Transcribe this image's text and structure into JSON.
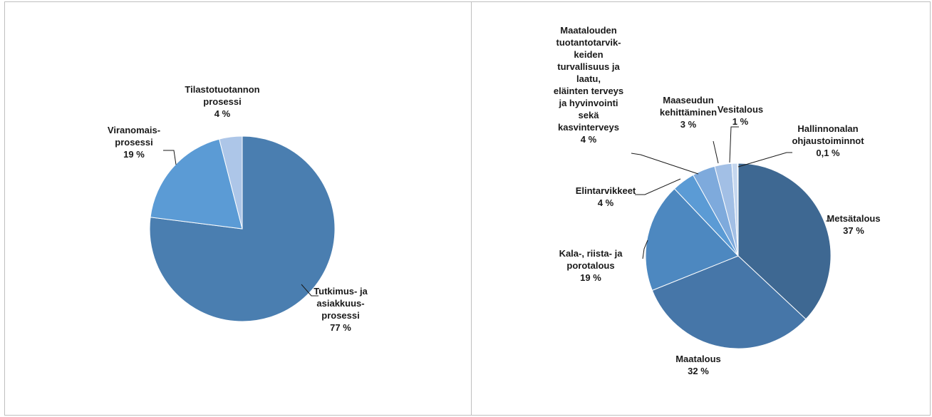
{
  "chart_data": [
    {
      "type": "pie",
      "title": "",
      "slices": [
        {
          "label_lines": [
            "Tutkimus- ja",
            "asiakkuus-",
            "prosessi"
          ],
          "value_label": "77 %",
          "value": 77,
          "color": "#4a7eb0"
        },
        {
          "label_lines": [
            "Viranomais-",
            "prosessi"
          ],
          "value_label": "19 %",
          "value": 19,
          "color": "#5b9bd5"
        },
        {
          "label_lines": [
            "Tilastotuotannon",
            "prosessi"
          ],
          "value_label": "4 %",
          "value": 4,
          "color": "#adc6e8"
        }
      ]
    },
    {
      "type": "pie",
      "title": "",
      "slices": [
        {
          "label_lines": [
            "Metsätalous"
          ],
          "value_label": "37 %",
          "value": 37,
          "color": "#3e6892"
        },
        {
          "label_lines": [
            "Maatalous"
          ],
          "value_label": "32 %",
          "value": 32,
          "color": "#4676a8"
        },
        {
          "label_lines": [
            "Kala-, riista- ja",
            "porotalous"
          ],
          "value_label": "19 %",
          "value": 19,
          "color": "#4d88c0"
        },
        {
          "label_lines": [
            "Elintarvikkeet"
          ],
          "value_label": "4 %",
          "value": 4,
          "color": "#5b9bd5"
        },
        {
          "label_lines": [
            "Maatalouden",
            "tuotantotarvik-",
            "keiden",
            "turvallisuus ja",
            "laatu,",
            "eläinten terveys",
            "ja hyvinvointi",
            "sekä",
            "kasvinterveys"
          ],
          "value_label": "4 %",
          "value": 4,
          "color": "#7eaadc"
        },
        {
          "label_lines": [
            "Maaseudun",
            "kehittäminen"
          ],
          "value_label": "3 %",
          "value": 3,
          "color": "#a2bfe5"
        },
        {
          "label_lines": [
            "Vesitalous"
          ],
          "value_label": "1 %",
          "value": 1,
          "color": "#c5d7ef"
        },
        {
          "label_lines": [
            "Hallinnonalan",
            "ohjaustoiminnot"
          ],
          "value_label": "0,1 %",
          "value": 0.1,
          "color": "#dfe8f5"
        }
      ]
    }
  ]
}
